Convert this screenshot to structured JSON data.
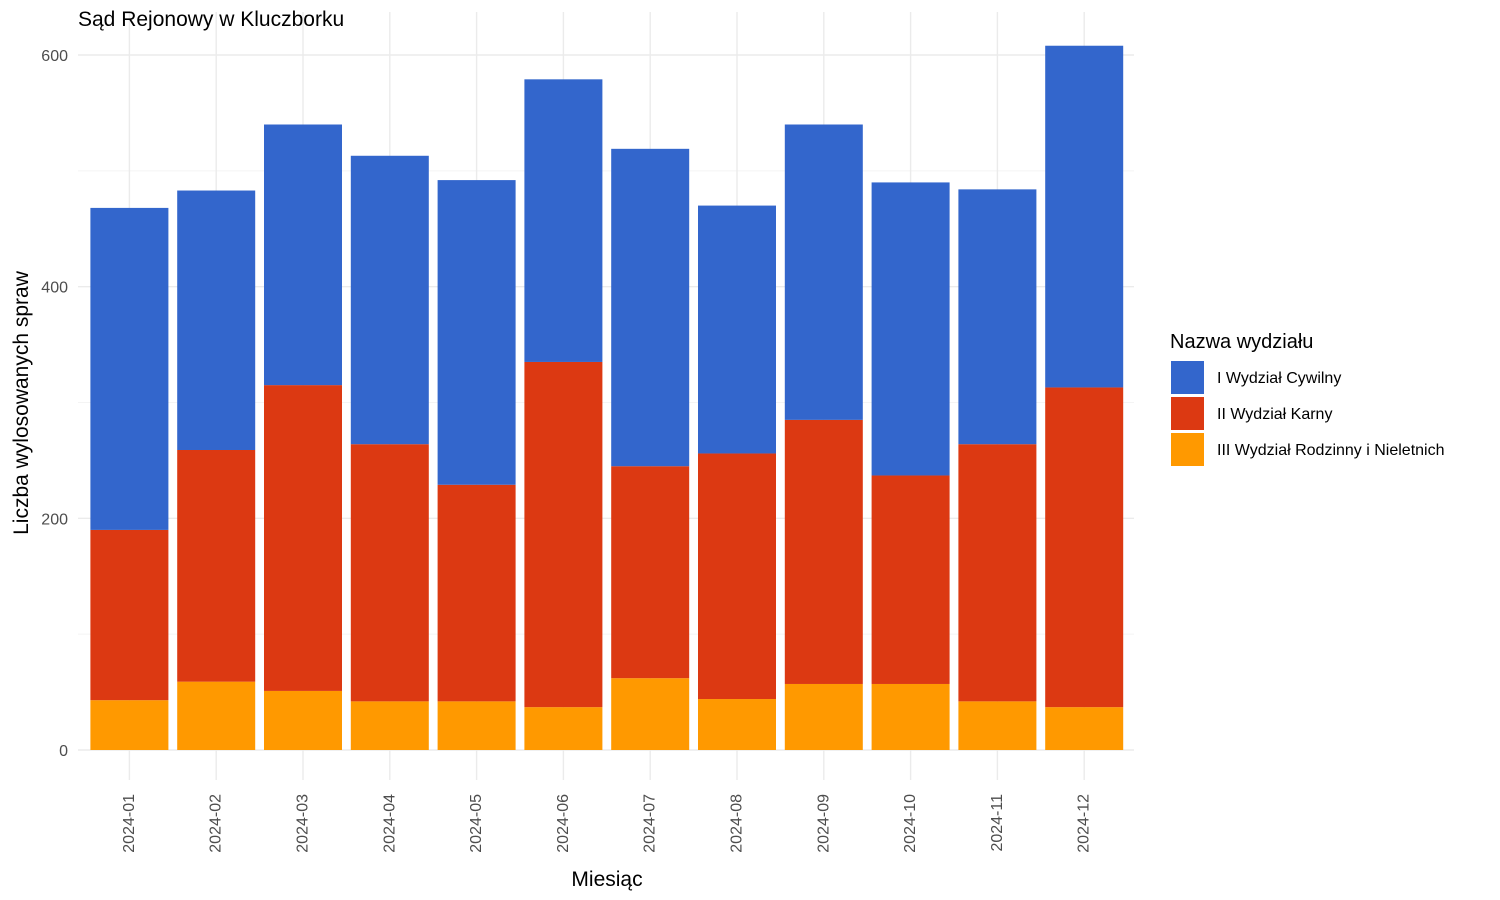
{
  "chart_data": {
    "type": "bar",
    "stacked": true,
    "title": "Sąd Rejonowy w Kluczborku",
    "xlabel": "Miesiąc",
    "ylabel": "Liczba wylosowanych spraw",
    "ylim": [
      0,
      620
    ],
    "yticks": [
      0,
      200,
      400,
      600
    ],
    "grid": true,
    "legend": {
      "title": "Nazwa wydziału",
      "position": "right"
    },
    "categories": [
      "2024-01",
      "2024-02",
      "2024-03",
      "2024-04",
      "2024-05",
      "2024-06",
      "2024-07",
      "2024-08",
      "2024-09",
      "2024-10",
      "2024-11",
      "2024-12"
    ],
    "series": [
      {
        "name": "III Wydział Rodzinny i Nieletnich",
        "color": "#FF9900",
        "values": [
          43,
          59,
          51,
          42,
          42,
          37,
          62,
          44,
          57,
          57,
          42,
          37
        ]
      },
      {
        "name": "II Wydział Karny",
        "color": "#DC3912",
        "values": [
          147,
          200,
          264,
          222,
          187,
          298,
          183,
          212,
          228,
          180,
          222,
          276
        ]
      },
      {
        "name": "I Wydział Cywilny",
        "color": "#3366CC",
        "values": [
          278,
          224,
          225,
          249,
          263,
          244,
          274,
          214,
          255,
          253,
          220,
          295
        ]
      }
    ],
    "legend_order": [
      "I Wydział Cywilny",
      "II Wydział Karny",
      "III Wydział Rodzinny i Nieletnich"
    ]
  }
}
